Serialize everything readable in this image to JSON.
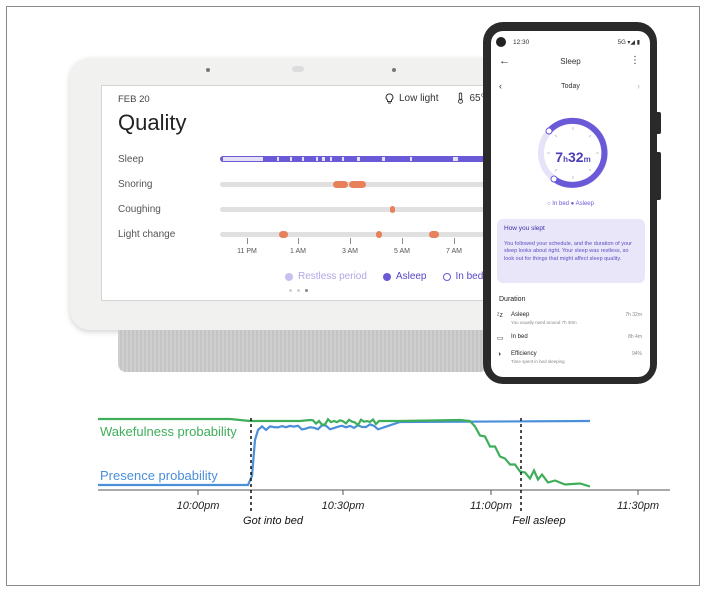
{
  "hub": {
    "date": "FEB 20",
    "title": "Quality",
    "light": "Low light",
    "temp": "65°F",
    "rows": [
      {
        "label": "Sleep"
      },
      {
        "label": "Snoring"
      },
      {
        "label": "Coughing"
      },
      {
        "label": "Light change"
      }
    ],
    "ticks": [
      "11 PM",
      "1 AM",
      "3 AM",
      "5 AM",
      "7 AM"
    ],
    "legend": {
      "restless": "Restless period",
      "asleep": "Asleep",
      "in_bed": "In bed"
    },
    "colors": {
      "asleep": "#6a5ad8",
      "restless": "#c7c0ee",
      "event": "#e8805a"
    }
  },
  "phone": {
    "status_time": "12:30",
    "status_icons": "5G ▾◢ ▮",
    "title": "Sleep",
    "day": "Today",
    "duration_hours": "7",
    "duration_h": "h",
    "duration_minutes": "32",
    "duration_m": "m",
    "legend": "○ In bed  ● Asleep",
    "card_title": "How you slept",
    "card_body": "You followed your schedule, and the duration of your sleep looks about right. Your sleep was restless, so look out for things that might affect sleep quality.",
    "duration_header": "Duration",
    "rows": [
      {
        "name": "Asleep",
        "sub": "You usually need around 7h 30m",
        "value": "7h 32m"
      },
      {
        "name": "In bed",
        "sub": "",
        "value": "8h 4m"
      },
      {
        "name": "Efficiency",
        "sub": "Time spent in bed sleeping",
        "value": "94%"
      }
    ]
  },
  "chart_data": {
    "type": "line",
    "x_ticks": [
      "10:00pm",
      "10:30pm",
      "11:00pm",
      "11:30pm"
    ],
    "series": [
      {
        "name": "Wakefulness probability",
        "color": "#3fae5a"
      },
      {
        "name": "Presence probability",
        "color": "#4a8fd8"
      }
    ],
    "events": [
      {
        "label": "Got into bed",
        "time": "10:15pm"
      },
      {
        "label": "Fell asleep",
        "time": "11:05pm"
      }
    ]
  }
}
